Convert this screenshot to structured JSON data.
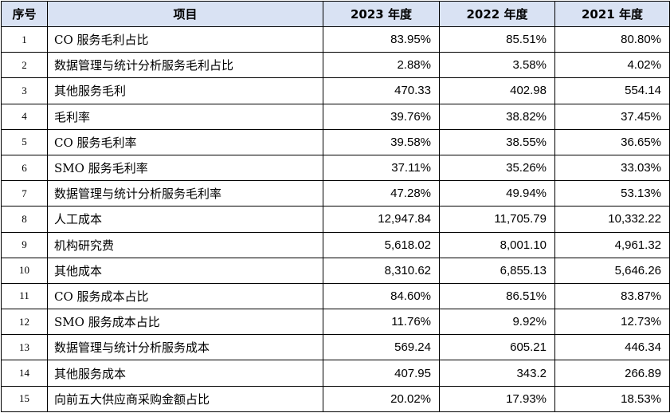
{
  "table": {
    "headers": [
      "序号",
      "项目",
      "2023 年度",
      "2022 年度",
      "2021 年度"
    ],
    "rows": [
      {
        "no": "1",
        "item": "CO 服务毛利占比",
        "y2023": "83.95%",
        "y2022": "85.51%",
        "y2021": "80.80%"
      },
      {
        "no": "2",
        "item": "数据管理与统计分析服务毛利占比",
        "y2023": "2.88%",
        "y2022": "3.58%",
        "y2021": "4.02%"
      },
      {
        "no": "3",
        "item": "其他服务毛利",
        "y2023": "470.33",
        "y2022": "402.98",
        "y2021": "554.14"
      },
      {
        "no": "4",
        "item": "毛利率",
        "y2023": "39.76%",
        "y2022": "38.82%",
        "y2021": "37.45%"
      },
      {
        "no": "5",
        "item": "CO 服务毛利率",
        "y2023": "39.58%",
        "y2022": "38.55%",
        "y2021": "36.65%"
      },
      {
        "no": "6",
        "item": "SMO 服务毛利率",
        "y2023": "37.11%",
        "y2022": "35.26%",
        "y2021": "33.03%"
      },
      {
        "no": "7",
        "item": "数据管理与统计分析服务毛利率",
        "y2023": "47.28%",
        "y2022": "49.94%",
        "y2021": "53.13%"
      },
      {
        "no": "8",
        "item": "人工成本",
        "y2023": "12,947.84",
        "y2022": "11,705.79",
        "y2021": "10,332.22"
      },
      {
        "no": "9",
        "item": "机构研究费",
        "y2023": "5,618.02",
        "y2022": "8,001.10",
        "y2021": "4,961.32"
      },
      {
        "no": "10",
        "item": "其他成本",
        "y2023": "8,310.62",
        "y2022": "6,855.13",
        "y2021": "5,646.26"
      },
      {
        "no": "11",
        "item": "CO 服务成本占比",
        "y2023": "84.60%",
        "y2022": "86.51%",
        "y2021": "83.87%"
      },
      {
        "no": "12",
        "item": "SMO 服务成本占比",
        "y2023": "11.76%",
        "y2022": "9.92%",
        "y2021": "12.73%"
      },
      {
        "no": "13",
        "item": "数据管理与统计分析服务成本",
        "y2023": "569.24",
        "y2022": "605.21",
        "y2021": "446.34"
      },
      {
        "no": "14",
        "item": "其他服务成本",
        "y2023": "407.95",
        "y2022": "343.2",
        "y2021": "266.89"
      },
      {
        "no": "15",
        "item": "向前五大供应商采购金额占比",
        "y2023": "20.02%",
        "y2022": "17.93%",
        "y2021": "18.53%"
      }
    ]
  },
  "colors": {
    "header_bg": "#d9e2f3",
    "border": "#000000"
  }
}
